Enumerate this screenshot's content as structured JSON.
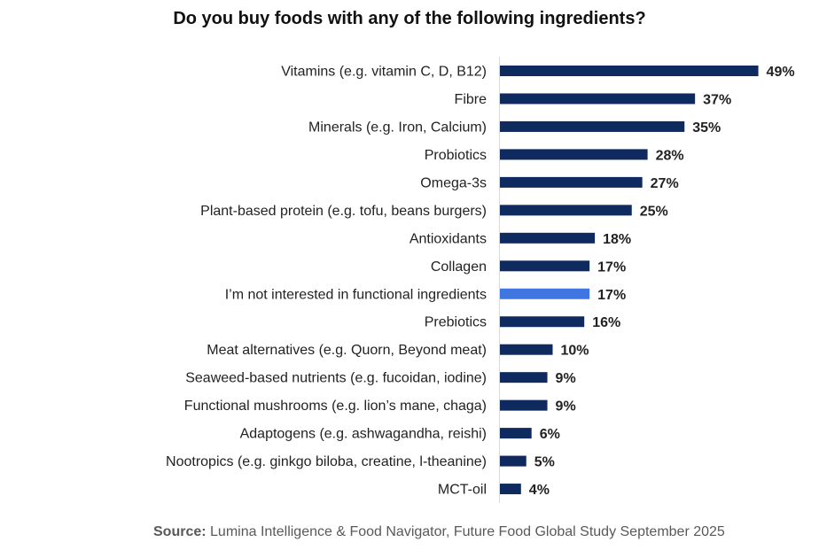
{
  "chart_data": {
    "type": "bar",
    "orientation": "horizontal",
    "title": "Do you buy foods with any of the following ingredients?",
    "categories": [
      "Vitamins (e.g. vitamin C, D, B12)",
      "Fibre",
      "Minerals (e.g. Iron, Calcium)",
      "Probiotics",
      "Omega-3s",
      "Plant-based protein (e.g. tofu, beans burgers)",
      "Antioxidants",
      "Collagen",
      "I’m not interested in functional ingredients",
      "Prebiotics",
      "Meat alternatives (e.g. Quorn, Beyond meat)",
      "Seaweed-based nutrients (e.g. fucoidan, iodine)",
      "Functional mushrooms (e.g. lion’s mane, chaga)",
      "Adaptogens (e.g. ashwagandha, reishi)",
      "Nootropics (e.g. ginkgo biloba, creatine, l-theanine)",
      "MCT-oil"
    ],
    "values": [
      49,
      37,
      35,
      28,
      27,
      25,
      18,
      17,
      17,
      16,
      10,
      9,
      9,
      6,
      5,
      4
    ],
    "data_labels": [
      "49%",
      "37%",
      "35%",
      "28%",
      "27%",
      "25%",
      "18%",
      "17%",
      "17%",
      "16%",
      "10%",
      "9%",
      "9%",
      "6%",
      "5%",
      "4%"
    ],
    "highlight_index": 8,
    "colors": {
      "bar": "#0f2a5e",
      "highlight": "#3f76e0",
      "axis": "#d9d9d9"
    },
    "xlim": [
      0,
      50
    ],
    "grid": false
  },
  "source": {
    "label": "Source:",
    "text": " Lumina Intelligence & Food Navigator, Future Food Global Study September 2025"
  }
}
